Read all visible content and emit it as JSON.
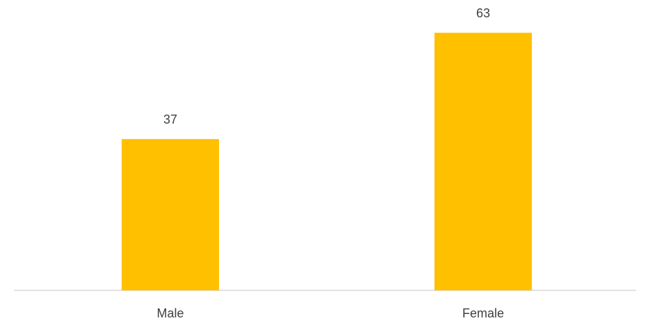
{
  "chart_data": {
    "type": "bar",
    "categories": [
      "Male",
      "Female"
    ],
    "values": [
      37,
      63
    ],
    "color": "#ffc000",
    "ylim": [
      0,
      70
    ]
  }
}
